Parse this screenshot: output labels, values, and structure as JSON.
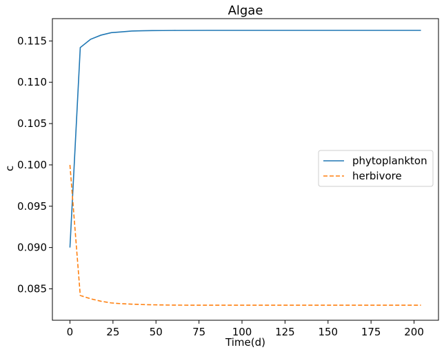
{
  "chart_data": {
    "type": "line",
    "title": "Algae",
    "xlabel": "Time(d)",
    "ylabel": "c",
    "xlim": [
      -10.2,
      214.2
    ],
    "ylim": [
      0.0812,
      0.1177
    ],
    "xticks": [
      0,
      25,
      50,
      75,
      100,
      125,
      150,
      175,
      200
    ],
    "yticks": [
      0.085,
      0.09,
      0.095,
      0.1,
      0.105,
      0.11,
      0.115
    ],
    "ytick_labels": [
      "0.085",
      "0.090",
      "0.095",
      "0.100",
      "0.105",
      "0.110",
      "0.115"
    ],
    "grid": false,
    "legend_position": "center-right",
    "x": [
      0,
      6,
      12,
      18,
      24,
      30,
      36,
      42,
      48,
      54,
      60,
      80,
      100,
      120,
      140,
      160,
      180,
      204
    ],
    "series": [
      {
        "name": "phytoplankton",
        "color": "#1f77b4",
        "dash": "solid",
        "values": [
          0.09,
          0.1142,
          0.1152,
          0.1157,
          0.116,
          0.1161,
          0.1162,
          0.11623,
          0.11625,
          0.11626,
          0.11627,
          0.11628,
          0.11628,
          0.11628,
          0.11628,
          0.11628,
          0.11628,
          0.11628
        ]
      },
      {
        "name": "herbivore",
        "color": "#ff7f0e",
        "dash": "dashed",
        "values": [
          0.1,
          0.0842,
          0.0838,
          0.0835,
          0.0833,
          0.0832,
          0.08315,
          0.0831,
          0.08307,
          0.08305,
          0.08303,
          0.08302,
          0.08302,
          0.08302,
          0.08302,
          0.08302,
          0.08302,
          0.08302
        ]
      }
    ]
  }
}
